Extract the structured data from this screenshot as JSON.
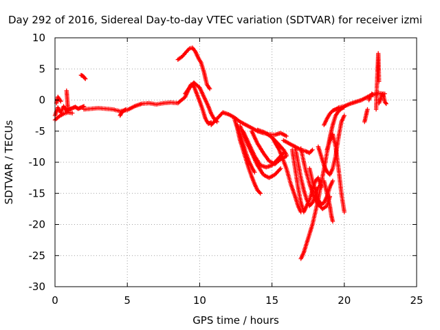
{
  "chart_data": {
    "type": "scatter",
    "title": "Day 292 of 2016, Sidereal Day-to-day VTEC variation (SDTVAR) for receiver izmi",
    "xlabel": "GPS time / hours",
    "ylabel": "SDTVAR / TECUs",
    "xlim": [
      0,
      25
    ],
    "ylim": [
      -30,
      10
    ],
    "x_ticks": [
      "0",
      "5",
      "10",
      "15",
      "20",
      "25"
    ],
    "y_ticks": [
      "10",
      "5",
      "0",
      "-5",
      "-10",
      "-15",
      "-20",
      "-25",
      "-30"
    ],
    "grid": true,
    "marker": "+",
    "color": "#ff0000",
    "series": [
      {
        "x": [
          0.0,
          0.2,
          0.4,
          0.6,
          0.8,
          1.0,
          1.2,
          1.4,
          1.6,
          1.8,
          2.0
        ],
        "y": [
          -2.5,
          -1.2,
          -2.0,
          -1.0,
          -1.8,
          -1.5,
          -1.3,
          -1.1,
          -1.4,
          -1.2,
          -1.0
        ]
      },
      {
        "x": [
          0.0,
          0.3,
          0.6,
          0.9,
          1.2
        ],
        "y": [
          -3.2,
          -2.6,
          -2.2,
          -2.0,
          -2.1
        ]
      },
      {
        "x": [
          0.1,
          0.2,
          0.4
        ],
        "y": [
          -0.5,
          0.5,
          -0.2
        ]
      },
      {
        "x": [
          0.8,
          0.85,
          0.9
        ],
        "y": [
          1.5,
          0.0,
          -1.5
        ]
      },
      {
        "x": [
          1.8,
          1.9,
          2.0,
          2.1
        ],
        "y": [
          4.0,
          3.9,
          3.7,
          3.4
        ]
      },
      {
        "x": [
          2.0,
          3.0,
          4.0,
          4.5,
          5.0,
          5.5,
          6.0,
          6.5,
          7.0,
          7.5,
          8.0,
          8.5,
          9.0,
          9.4,
          9.6,
          9.8,
          10.0,
          10.2,
          10.4,
          10.6,
          10.8
        ],
        "y": [
          -1.5,
          -1.3,
          -1.5,
          -1.8,
          -1.6,
          -1.0,
          -0.6,
          -0.5,
          -0.7,
          -0.5,
          -0.4,
          -0.5,
          0.5,
          2.5,
          2.2,
          1.0,
          -0.2,
          -1.5,
          -3.0,
          -3.8,
          -3.6
        ]
      },
      {
        "x": [
          4.5,
          4.6,
          4.7,
          4.9
        ],
        "y": [
          -2.5,
          -2.0,
          -1.8,
          -1.5
        ]
      },
      {
        "x": [
          8.5,
          8.8,
          9.1,
          9.3,
          9.5,
          9.7,
          9.9,
          10.1,
          10.3,
          10.5,
          10.7
        ],
        "y": [
          6.5,
          7.0,
          7.8,
          8.3,
          8.4,
          7.8,
          6.8,
          6.0,
          4.5,
          2.5,
          1.8
        ]
      },
      {
        "x": [
          9.0,
          9.3,
          9.6,
          10.0,
          10.4,
          10.6,
          10.8,
          11.0,
          11.2
        ],
        "y": [
          1.0,
          2.0,
          2.8,
          2.0,
          0.0,
          -1.0,
          -2.2,
          -3.0,
          -3.5
        ]
      },
      {
        "x": [
          10.8,
          11.2,
          11.6,
          12.0,
          12.4,
          12.8,
          13.2,
          13.6,
          14.0,
          14.4,
          14.8,
          15.2,
          15.6,
          16.0
        ],
        "y": [
          -4.0,
          -3.0,
          -2.0,
          -2.3,
          -2.8,
          -3.5,
          -4.0,
          -4.5,
          -5.0,
          -5.3,
          -5.5,
          -5.6,
          -5.3,
          -5.8
        ]
      },
      {
        "x": [
          12.4,
          12.6,
          12.8,
          13.0,
          13.2,
          13.4,
          13.6,
          13.8,
          14.0,
          14.2
        ],
        "y": [
          -3.0,
          -4.5,
          -6.5,
          -8.0,
          -9.5,
          -11.0,
          -12.3,
          -13.5,
          -14.5,
          -15.0
        ]
      },
      {
        "x": [
          12.6,
          12.8,
          13.0,
          13.2,
          13.4,
          13.6,
          13.8
        ],
        "y": [
          -4.0,
          -5.5,
          -7.0,
          -8.5,
          -9.8,
          -10.8,
          -11.6
        ]
      },
      {
        "x": [
          12.8,
          13.2,
          13.6,
          14.0,
          14.4,
          14.8,
          15.2,
          15.6
        ],
        "y": [
          -4.2,
          -6.5,
          -8.5,
          -10.5,
          -12.0,
          -12.5,
          -12.0,
          -11.0
        ]
      },
      {
        "x": [
          13.0,
          13.4,
          13.8,
          14.2,
          14.6,
          15.0,
          15.4,
          15.8
        ],
        "y": [
          -5.0,
          -7.0,
          -9.0,
          -10.5,
          -10.8,
          -10.5,
          -9.5,
          -8.5
        ]
      },
      {
        "x": [
          13.6,
          14.0,
          14.4,
          14.8,
          15.2,
          15.6,
          16.0
        ],
        "y": [
          -5.0,
          -7.0,
          -8.5,
          -9.8,
          -10.3,
          -9.5,
          -9.0
        ]
      },
      {
        "x": [
          14.0,
          14.5,
          15.0,
          15.5,
          15.8,
          16.0
        ],
        "y": [
          -4.8,
          -5.2,
          -6.0,
          -7.2,
          -8.0,
          -8.8
        ]
      },
      {
        "x": [
          15.0,
          15.5,
          16.0,
          16.3,
          16.6,
          16.8,
          17.0
        ],
        "y": [
          -6.0,
          -8.0,
          -11.0,
          -13.5,
          -15.5,
          -17.0,
          -18.0
        ]
      },
      {
        "x": [
          15.8,
          16.2,
          16.6,
          17.0,
          17.3,
          17.6,
          17.8
        ],
        "y": [
          -6.5,
          -7.0,
          -7.5,
          -8.0,
          -8.2,
          -8.5,
          -8.0
        ]
      },
      {
        "x": [
          16.4,
          16.6,
          16.8,
          17.0,
          17.2,
          17.4,
          17.6,
          17.8,
          18.0,
          18.2,
          18.4
        ],
        "y": [
          -8.0,
          -11.0,
          -14.0,
          -16.5,
          -18.0,
          -17.0,
          -16.0,
          -14.5,
          -13.0,
          -12.5,
          -14.0
        ]
      },
      {
        "x": [
          16.6,
          16.8,
          17.0,
          17.2,
          17.4,
          17.6,
          17.8,
          18.0,
          18.2
        ],
        "y": [
          -7.5,
          -10.0,
          -12.5,
          -14.5,
          -16.0,
          -17.0,
          -16.5,
          -15.5,
          -14.0
        ]
      },
      {
        "x": [
          17.0,
          17.3,
          17.6,
          17.9,
          18.2,
          18.5,
          18.8,
          19.0
        ],
        "y": [
          -7.8,
          -11.0,
          -13.5,
          -15.5,
          -16.8,
          -17.5,
          -17.0,
          -15.5
        ]
      },
      {
        "x": [
          17.0,
          17.2,
          17.4,
          17.6,
          17.8,
          18.0,
          18.2,
          18.4,
          18.6,
          18.8,
          19.0,
          19.2,
          19.4,
          19.6,
          19.8,
          20.0
        ],
        "y": [
          -25.5,
          -24.5,
          -23.0,
          -21.5,
          -20.0,
          -18.0,
          -16.0,
          -13.5,
          -11.0,
          -8.5,
          -6.0,
          -4.0,
          -2.5,
          -1.8,
          -1.4,
          -1.1
        ]
      },
      {
        "x": [
          17.6,
          17.8,
          18.0,
          18.2,
          18.4,
          18.6,
          18.8,
          19.0,
          19.2
        ],
        "y": [
          -11.0,
          -13.0,
          -14.5,
          -16.0,
          -16.8,
          -16.5,
          -15.5,
          -14.0,
          -13.0
        ]
      },
      {
        "x": [
          18.2,
          18.4,
          18.6,
          18.8,
          19.0,
          19.2,
          19.4,
          19.6,
          19.8,
          20.0
        ],
        "y": [
          -7.5,
          -9.0,
          -10.5,
          -11.5,
          -12.0,
          -11.0,
          -9.0,
          -6.0,
          -3.5,
          -2.5
        ]
      },
      {
        "x": [
          18.6,
          18.8,
          19.0,
          19.1,
          19.2
        ],
        "y": [
          -13.0,
          -15.0,
          -17.0,
          -18.5,
          -19.5
        ]
      },
      {
        "x": [
          18.8,
          19.0,
          19.2,
          19.4,
          19.6,
          19.8,
          20.0
        ],
        "y": [
          -8.0,
          -6.5,
          -5.5,
          -7.5,
          -11.0,
          -15.0,
          -18.0
        ]
      },
      {
        "x": [
          18.6,
          18.8,
          19.0,
          19.2,
          19.4,
          19.6
        ],
        "y": [
          -4.0,
          -3.0,
          -2.2,
          -1.7,
          -1.5,
          -1.3
        ]
      },
      {
        "x": [
          19.6,
          20.0,
          20.4,
          20.8,
          21.2,
          21.6,
          22.0,
          22.4,
          22.8
        ],
        "y": [
          -1.2,
          -1.0,
          -0.6,
          -0.3,
          0.0,
          0.5,
          0.9,
          1.1,
          1.0
        ]
      },
      {
        "x": [
          21.4,
          21.5,
          21.6
        ],
        "y": [
          -3.5,
          -2.5,
          -1.5
        ]
      },
      {
        "x": [
          21.7,
          21.8,
          21.9,
          22.0
        ],
        "y": [
          0.0,
          0.6,
          1.0,
          0.8
        ]
      },
      {
        "x": [
          22.2,
          22.25,
          22.3,
          22.35,
          22.4
        ],
        "y": [
          -1.5,
          2.0,
          5.0,
          7.5,
          3.0
        ]
      },
      {
        "x": [
          22.4,
          22.5,
          22.6,
          22.7,
          22.8,
          22.9
        ],
        "y": [
          -0.5,
          0.2,
          1.0,
          0.8,
          -0.3,
          -0.6
        ]
      }
    ]
  }
}
